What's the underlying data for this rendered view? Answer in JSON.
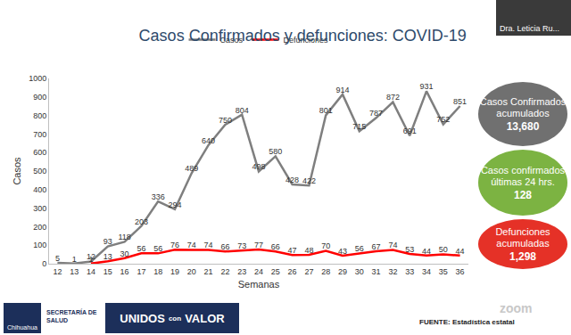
{
  "chart_data": {
    "type": "line",
    "title": "Casos Confirmados y defunciones: COVID-19",
    "x_label": "Semanas",
    "y_label": "Casos",
    "x": [
      12,
      13,
      14,
      15,
      16,
      17,
      18,
      19,
      20,
      21,
      22,
      23,
      24,
      25,
      26,
      27,
      28,
      29,
      30,
      31,
      32,
      33,
      34,
      35,
      36
    ],
    "xlim": [
      11.5,
      36.5
    ],
    "xticks": [
      12,
      13,
      14,
      15,
      16,
      17,
      18,
      19,
      20,
      21,
      22,
      23,
      24,
      25,
      26,
      27,
      28,
      29,
      30,
      31,
      32,
      33,
      34,
      35,
      36
    ],
    "ylim": [
      0,
      1000
    ],
    "yticks": [
      0,
      100,
      200,
      300,
      400,
      500,
      600,
      700,
      800,
      900,
      1000
    ],
    "grid": false,
    "legend": "top",
    "data_labels": true,
    "series": [
      {
        "name": "Casos",
        "color": "#7f7f7f",
        "values": [
          5,
          1,
          12,
          93,
          118,
          203,
          336,
          294,
          489,
          640,
          750,
          804,
          498,
          580,
          428,
          422,
          801,
          914,
          715,
          787,
          872,
          691,
          931,
          752,
          851
        ]
      },
      {
        "name": "Defunciones",
        "color": "#ff0000",
        "values": [
          null,
          null,
          1,
          13,
          30,
          56,
          56,
          76,
          74,
          74,
          66,
          73,
          77,
          66,
          47,
          48,
          70,
          43,
          56,
          67,
          74,
          53,
          44,
          50,
          44
        ]
      }
    ],
    "annotations": [
      {
        "title": "Casos Confirmados acumulados",
        "text": "13,680",
        "color": "#707070"
      },
      {
        "title": "Casos confirmados últimas 24 hrs.",
        "text": "128",
        "color": "#7cb342"
      },
      {
        "title": "Defunciones acumuladas",
        "text": "1,298",
        "color": "#e53127"
      }
    ],
    "source": "FUENTE: Estadística estatal"
  },
  "header": {
    "presenter": "Dra. Leticia Ru..."
  },
  "footer": {
    "logo": "Chihuahua",
    "department": "SECRETARÍA DE SALUD",
    "slogan": [
      "UNIDOS",
      "con",
      "VALOR"
    ],
    "watermark": "zoom"
  }
}
